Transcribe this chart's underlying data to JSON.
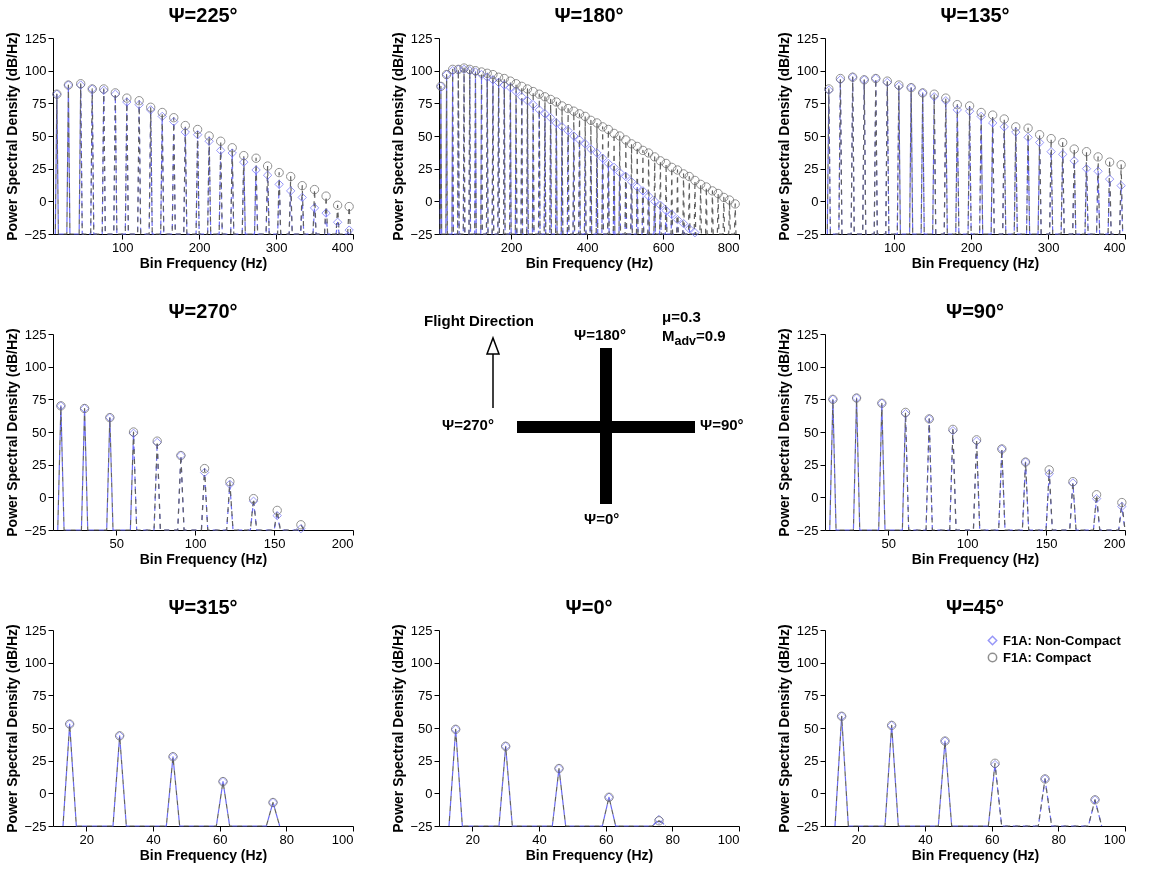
{
  "chart_data": [
    {
      "type": "line",
      "title": "Ψ=225°",
      "xlabel": "Bin Frequency (Hz)",
      "ylabel": "Power Spectral Density (dB/Hz)",
      "xlim": [
        10,
        400
      ],
      "xticks": [
        100,
        200,
        300,
        400
      ],
      "ylim": [
        -25,
        125
      ],
      "yticks": [
        -25,
        0,
        25,
        50,
        75,
        100,
        125
      ],
      "x": [
        13,
        15,
        17,
        28,
        30,
        32,
        44,
        46,
        48,
        59,
        61,
        63,
        74,
        76,
        78,
        89,
        91,
        93,
        104,
        106,
        108,
        120,
        122,
        124,
        135,
        137,
        139,
        150,
        152,
        154,
        165,
        167,
        169,
        180,
        182,
        184,
        196,
        198,
        200,
        211,
        213,
        215,
        226,
        228,
        230,
        241,
        243,
        245,
        256,
        258,
        260,
        272,
        274,
        276,
        287,
        289,
        291,
        302,
        304,
        306,
        317,
        319,
        321,
        332,
        334,
        336,
        348,
        350,
        352,
        363,
        365,
        367,
        378,
        380,
        382,
        393,
        395,
        397
      ],
      "series": [
        {
          "color": "#6b6bf5",
          "line_style": "dashed",
          "marker": "none",
          "values": [
            -25,
            82,
            -25,
            -25,
            89,
            -25,
            -25,
            89,
            -25,
            -25,
            86,
            -25,
            -25,
            85,
            -25,
            -25,
            82,
            -25,
            -25,
            76,
            -25,
            -25,
            74,
            -25,
            -25,
            70,
            -25,
            -25,
            65,
            -25,
            -25,
            61,
            -25,
            -25,
            53,
            -25,
            -25,
            51,
            -25,
            -25,
            46,
            -25,
            -25,
            39,
            -25,
            -25,
            37,
            -25,
            -25,
            30,
            -25,
            -25,
            24,
            -25,
            -25,
            20,
            -25,
            -25,
            13,
            -25,
            -25,
            8,
            -25,
            -25,
            3,
            -25,
            -25,
            -5,
            -25,
            -25,
            -9,
            -25,
            -25,
            -16,
            -25,
            -25,
            -22,
            -25
          ]
        },
        {
          "color": "#606060",
          "line_style": "dashed",
          "marker": "none",
          "values": [
            -25,
            82,
            -25,
            -25,
            89,
            -25,
            -25,
            90,
            -25,
            -25,
            86,
            -25,
            -25,
            86,
            -25,
            -25,
            83,
            -25,
            -25,
            79,
            -25,
            -25,
            77,
            -25,
            -25,
            72,
            -25,
            -25,
            68,
            -25,
            -25,
            64,
            -25,
            -25,
            58,
            -25,
            -25,
            55,
            -25,
            -25,
            50,
            -25,
            -25,
            46,
            -25,
            -25,
            41,
            -25,
            -25,
            35,
            -25,
            -25,
            33,
            -25,
            -25,
            27,
            -25,
            -25,
            22,
            -25,
            -25,
            19,
            -25,
            -25,
            12,
            -25,
            -25,
            9,
            -25,
            -25,
            4,
            -25,
            -25,
            -3,
            -25,
            -25,
            -4,
            -25
          ]
        },
        {
          "type": "scatter",
          "color": "#6b6bf5",
          "marker": "diamond",
          "x": [
            15,
            30,
            46,
            61,
            76,
            91,
            106,
            122,
            137,
            152,
            167,
            182,
            198,
            213,
            228,
            243,
            258,
            274,
            289,
            304,
            319,
            334,
            350,
            365,
            380,
            395
          ],
          "values": [
            82,
            89,
            89,
            86,
            85,
            82,
            76,
            74,
            70,
            65,
            61,
            53,
            51,
            46,
            39,
            37,
            30,
            24,
            20,
            13,
            8,
            3,
            -5,
            -9,
            -16,
            -22
          ]
        },
        {
          "type": "scatter",
          "color": "#606060",
          "marker": "circle",
          "x": [
            15,
            30,
            46,
            61,
            76,
            91,
            106,
            122,
            137,
            152,
            167,
            182,
            198,
            213,
            228,
            243,
            258,
            274,
            289,
            304,
            319,
            334,
            350,
            365,
            380,
            395
          ],
          "values": [
            82,
            89,
            90,
            86,
            86,
            83,
            79,
            77,
            72,
            68,
            64,
            58,
            55,
            50,
            46,
            41,
            35,
            33,
            27,
            22,
            19,
            12,
            9,
            4,
            -3,
            -4
          ]
        }
      ]
    },
    {
      "type": "line",
      "title": "Ψ=180°",
      "xlabel": "Bin Frequency (Hz)",
      "ylabel": "Power Spectral Density (dB/Hz)",
      "xlim": [
        10,
        800
      ],
      "xticks": [
        200,
        400,
        600,
        800
      ],
      "ylim": [
        -25,
        125
      ],
      "yticks": [
        -25,
        0,
        25,
        50,
        75,
        100,
        125
      ],
      "x": [
        13,
        15,
        17,
        28,
        30,
        32,
        44,
        46,
        48,
        59,
        61,
        63,
        74,
        76,
        78,
        89,
        91,
        93,
        104,
        106,
        108,
        120,
        122,
        124,
        135,
        137,
        139,
        150,
        152,
        154,
        165,
        167,
        169,
        180,
        182,
        184,
        196,
        198,
        200,
        211,
        213,
        215,
        226,
        228,
        230,
        241,
        243,
        245,
        256,
        258,
        260,
        272,
        274,
        276,
        287,
        289,
        291,
        302,
        304,
        306,
        317,
        319,
        321,
        332,
        334,
        336,
        348,
        350,
        352,
        363,
        365,
        367,
        378,
        380,
        382,
        393,
        395,
        397,
        408,
        410,
        412,
        424,
        426,
        428,
        439,
        441,
        443,
        454,
        456,
        458,
        469,
        471,
        473,
        484,
        486,
        488,
        500,
        502,
        504,
        515,
        517,
        519,
        530,
        532,
        534,
        545,
        547,
        549,
        560,
        562,
        564,
        576,
        578,
        580,
        591,
        593,
        595,
        606,
        608,
        610,
        621,
        623,
        625,
        636,
        638,
        640,
        652,
        654,
        656,
        667,
        669,
        671,
        682,
        684,
        686,
        697,
        699,
        701,
        712,
        714,
        716,
        728,
        730,
        732,
        743,
        745,
        747,
        758,
        760,
        762,
        773,
        775,
        777,
        788,
        790,
        792
      ],
      "series": [
        {
          "color": "#6b6bf5",
          "line_style": "dashed",
          "marker": "none",
          "values": [
            -25,
            88,
            -25,
            -25,
            97,
            -25,
            -25,
            100,
            -25,
            -25,
            101,
            -25,
            -25,
            101,
            -25,
            -25,
            100,
            -25,
            -25,
            99,
            -25,
            -25,
            97,
            -25,
            -25,
            95,
            -25,
            -25,
            93,
            -25,
            -25,
            91,
            -25,
            -25,
            89,
            -25,
            -25,
            87,
            -25,
            -25,
            84,
            -25,
            -25,
            80,
            -25,
            -25,
            77,
            -25,
            -25,
            74,
            -25,
            -25,
            70,
            -25,
            -25,
            67,
            -25,
            -25,
            64,
            -25,
            -25,
            60,
            -25,
            -25,
            57,
            -25,
            -25,
            54,
            -25,
            -25,
            50,
            -25,
            -25,
            47,
            -25,
            -25,
            44,
            -25,
            -25,
            40,
            -25,
            -25,
            37,
            -25,
            -25,
            33,
            -25,
            -25,
            29,
            -25,
            -25,
            26,
            -25,
            -25,
            22,
            -25,
            -25,
            19,
            -25,
            -25,
            15,
            -25,
            -25,
            11,
            -25,
            -25,
            8,
            -25,
            -25,
            4,
            -25,
            -25,
            0,
            -25,
            -25,
            -3,
            -25,
            -25,
            -7,
            -25,
            -25,
            -10,
            -25,
            -25,
            -14,
            -25,
            -25,
            -17,
            -25,
            -25,
            -21,
            -25,
            -25,
            -24,
            -25,
            null,
            null,
            null,
            null,
            null,
            null,
            null,
            null,
            null,
            null,
            null,
            null,
            null,
            null,
            null,
            null,
            null,
            null,
            null,
            null,
            null
          ]
        },
        {
          "color": "#606060",
          "line_style": "dashed",
          "marker": "none",
          "values": [
            -25,
            88,
            -25,
            -25,
            97,
            -25,
            -25,
            101,
            -25,
            -25,
            101,
            -25,
            -25,
            102,
            -25,
            -25,
            101,
            -25,
            -25,
            100,
            -25,
            -25,
            99,
            -25,
            -25,
            98,
            -25,
            -25,
            97,
            -25,
            -25,
            95,
            -25,
            -25,
            94,
            -25,
            -25,
            92,
            -25,
            -25,
            90,
            -25,
            -25,
            88,
            -25,
            -25,
            86,
            -25,
            -25,
            84,
            -25,
            -25,
            82,
            -25,
            -25,
            80,
            -25,
            -25,
            78,
            -25,
            -25,
            76,
            -25,
            -25,
            73,
            -25,
            -25,
            71,
            -25,
            -25,
            69,
            -25,
            -25,
            67,
            -25,
            -25,
            65,
            -25,
            -25,
            62,
            -25,
            -25,
            60,
            -25,
            -25,
            57,
            -25,
            -25,
            55,
            -25,
            -25,
            52,
            -25,
            -25,
            50,
            -25,
            -25,
            47,
            -25,
            -25,
            44,
            -25,
            -25,
            42,
            -25,
            -25,
            39,
            -25,
            -25,
            37,
            -25,
            -25,
            34,
            -25,
            -25,
            31,
            -25,
            -25,
            29,
            -25,
            -25,
            26,
            -25,
            -25,
            24,
            -25,
            -25,
            21,
            -25,
            -25,
            19,
            -25,
            -25,
            16,
            -25,
            -25,
            13,
            -25,
            -25,
            11,
            -25,
            -25,
            8,
            -25,
            -25,
            6,
            -25,
            -25,
            3,
            -25,
            -25,
            1,
            -25,
            -25,
            -2,
            -25
          ]
        },
        {
          "type": "scatter",
          "color": "#6b6bf5",
          "marker": "diamond",
          "x": [
            15,
            30,
            46,
            61,
            76,
            91,
            106,
            122,
            137,
            152,
            167,
            182,
            198,
            213,
            228,
            243,
            258,
            274,
            289,
            304,
            319,
            334,
            350,
            365,
            380,
            395,
            410,
            426,
            441,
            456,
            471,
            486,
            502,
            517,
            532,
            547,
            562,
            578,
            593,
            608,
            623,
            638,
            654,
            669,
            684
          ],
          "values": [
            88,
            97,
            100,
            101,
            101,
            100,
            99,
            97,
            95,
            93,
            91,
            89,
            87,
            84,
            80,
            77,
            74,
            70,
            67,
            64,
            60,
            57,
            54,
            50,
            47,
            44,
            40,
            37,
            33,
            29,
            26,
            22,
            19,
            15,
            11,
            8,
            4,
            0,
            -3,
            -7,
            -10,
            -14,
            -17,
            -21,
            -24
          ]
        },
        {
          "type": "scatter",
          "color": "#606060",
          "marker": "circle",
          "x": [
            15,
            30,
            46,
            61,
            76,
            91,
            106,
            122,
            137,
            152,
            167,
            182,
            198,
            213,
            228,
            243,
            258,
            274,
            289,
            304,
            319,
            334,
            350,
            365,
            380,
            395,
            410,
            426,
            441,
            456,
            471,
            486,
            502,
            517,
            532,
            547,
            562,
            578,
            593,
            608,
            623,
            638,
            654,
            669,
            684,
            699,
            714,
            730,
            745,
            760,
            775,
            790
          ],
          "values": [
            88,
            97,
            101,
            101,
            102,
            101,
            100,
            99,
            98,
            97,
            95,
            94,
            92,
            90,
            88,
            86,
            84,
            82,
            80,
            78,
            76,
            73,
            71,
            69,
            67,
            65,
            62,
            60,
            57,
            55,
            52,
            50,
            47,
            44,
            42,
            39,
            37,
            34,
            31,
            29,
            26,
            24,
            21,
            19,
            16,
            13,
            11,
            8,
            6,
            3,
            1,
            -2
          ]
        }
      ]
    },
    {
      "type": "line",
      "title": "Ψ=135°",
      "xlabel": "Bin Frequency (Hz)",
      "ylabel": "Power Spectral Density (dB/Hz)",
      "xlim": [
        10,
        400
      ],
      "xticks": [
        100,
        200,
        300,
        400
      ],
      "ylim": [
        -25,
        125
      ],
      "yticks": [
        -25,
        0,
        25,
        50,
        75,
        100,
        125
      ],
      "x": [
        13,
        15,
        17,
        28,
        30,
        32,
        44,
        46,
        48,
        59,
        61,
        63,
        74,
        76,
        78,
        89,
        91,
        93,
        104,
        106,
        108,
        120,
        122,
        124,
        135,
        137,
        139,
        150,
        152,
        154,
        165,
        167,
        169,
        180,
        182,
        184,
        196,
        198,
        200,
        211,
        213,
        215,
        226,
        228,
        230,
        241,
        243,
        245,
        256,
        258,
        260,
        272,
        274,
        276,
        287,
        289,
        291,
        302,
        304,
        306,
        317,
        319,
        321,
        332,
        334,
        336,
        348,
        350,
        352,
        363,
        365,
        367,
        378,
        380,
        382,
        393,
        395,
        397
      ],
      "series": [
        {
          "color": "#6b6bf5",
          "line_style": "dashed",
          "marker": "none",
          "values": [
            -25,
            85,
            -25,
            -25,
            93,
            -25,
            -25,
            95,
            -25,
            -25,
            93,
            -25,
            -25,
            94,
            -25,
            -25,
            91,
            -25,
            -25,
            88,
            -25,
            -25,
            87,
            -25,
            -25,
            83,
            -25,
            -25,
            80,
            -25,
            -25,
            77,
            -25,
            -25,
            70,
            -25,
            -25,
            69,
            -25,
            -25,
            65,
            -25,
            -25,
            60,
            -25,
            -25,
            57,
            -25,
            -25,
            53,
            -25,
            -25,
            49,
            -25,
            -25,
            45,
            -25,
            -25,
            38,
            -25,
            -25,
            36,
            -25,
            -25,
            31,
            -25,
            -25,
            25,
            -25,
            -25,
            23,
            -25,
            -25,
            17,
            -25,
            -25,
            12,
            -25
          ]
        },
        {
          "color": "#606060",
          "line_style": "dashed",
          "marker": "none",
          "values": [
            -25,
            86,
            -25,
            -25,
            94,
            -25,
            -25,
            95,
            -25,
            -25,
            93,
            -25,
            -25,
            94,
            -25,
            -25,
            92,
            -25,
            -25,
            89,
            -25,
            -25,
            87,
            -25,
            -25,
            83,
            -25,
            -25,
            82,
            -25,
            -25,
            79,
            -25,
            -25,
            74,
            -25,
            -25,
            73,
            -25,
            -25,
            68,
            -25,
            -25,
            66,
            -25,
            -25,
            63,
            -25,
            -25,
            57,
            -25,
            -25,
            56,
            -25,
            -25,
            51,
            -25,
            -25,
            48,
            -25,
            -25,
            45,
            -25,
            -25,
            40,
            -25,
            -25,
            38,
            -25,
            -25,
            34,
            -25,
            -25,
            30,
            -25,
            -25,
            28,
            -25
          ]
        },
        {
          "type": "scatter",
          "color": "#6b6bf5",
          "marker": "diamond",
          "x": [
            15,
            30,
            46,
            61,
            76,
            91,
            106,
            122,
            137,
            152,
            167,
            182,
            198,
            213,
            228,
            243,
            258,
            274,
            289,
            304,
            319,
            334,
            350,
            365,
            380,
            395
          ],
          "values": [
            85,
            93,
            95,
            93,
            94,
            91,
            88,
            87,
            83,
            80,
            77,
            70,
            69,
            65,
            60,
            57,
            53,
            49,
            45,
            38,
            36,
            31,
            25,
            23,
            17,
            12
          ]
        },
        {
          "type": "scatter",
          "color": "#606060",
          "marker": "circle",
          "x": [
            15,
            30,
            46,
            61,
            76,
            91,
            106,
            122,
            137,
            152,
            167,
            182,
            198,
            213,
            228,
            243,
            258,
            274,
            289,
            304,
            319,
            334,
            350,
            365,
            380,
            395
          ],
          "values": [
            86,
            94,
            95,
            93,
            94,
            92,
            89,
            87,
            83,
            82,
            79,
            74,
            73,
            68,
            66,
            63,
            57,
            56,
            51,
            48,
            45,
            40,
            38,
            34,
            30,
            28
          ]
        }
      ]
    },
    {
      "type": "line",
      "title": "Ψ=270°",
      "xlabel": "Bin Frequency (Hz)",
      "ylabel": "Power Spectral Density (dB/Hz)",
      "xlim": [
        10,
        200
      ],
      "xticks": [
        50,
        100,
        150,
        200
      ],
      "ylim": [
        -25,
        125
      ],
      "yticks": [
        -25,
        0,
        25,
        50,
        75,
        100,
        125
      ],
      "x": [
        13,
        15,
        17,
        28,
        30,
        32,
        44,
        46,
        48,
        59,
        61,
        63,
        74,
        76,
        78,
        89,
        91,
        93,
        104,
        106,
        108,
        120,
        122,
        124,
        135,
        137,
        139,
        150,
        152,
        154,
        165,
        167,
        169
      ],
      "series": [
        {
          "color": "#6b6bf5",
          "line_style": "dashed",
          "marker": "none",
          "values": [
            -25,
            70,
            -25,
            -25,
            68,
            -25,
            -25,
            61,
            -25,
            -25,
            49,
            -25,
            -25,
            42,
            -25,
            -25,
            32,
            -25,
            -25,
            19,
            -25,
            -25,
            10,
            -25,
            -25,
            -3,
            -25,
            -25,
            -14,
            -25,
            -25,
            -24,
            -25
          ]
        },
        {
          "color": "#606060",
          "line_style": "dashed",
          "marker": "none",
          "values": [
            -25,
            70,
            -25,
            -25,
            68,
            -25,
            -25,
            61,
            -25,
            -25,
            50,
            -25,
            -25,
            43,
            -25,
            -25,
            32,
            -25,
            -25,
            22,
            -25,
            -25,
            12,
            -25,
            -25,
            -1,
            -25,
            -25,
            -10,
            -25,
            -25,
            -21,
            -25
          ]
        },
        {
          "type": "scatter",
          "color": "#6b6bf5",
          "marker": "diamond",
          "x": [
            15,
            30,
            46,
            61,
            76,
            91,
            106,
            122,
            137,
            152,
            167
          ],
          "values": [
            70,
            68,
            61,
            49,
            42,
            32,
            19,
            10,
            -3,
            -14,
            -24
          ]
        },
        {
          "type": "scatter",
          "color": "#606060",
          "marker": "circle",
          "x": [
            15,
            30,
            46,
            61,
            76,
            91,
            106,
            122,
            137,
            152,
            167
          ],
          "values": [
            70,
            68,
            61,
            50,
            43,
            32,
            22,
            12,
            -1,
            -10,
            -21
          ]
        }
      ]
    },
    {
      "type": "other",
      "annotations": [
        "Flight Direction",
        "Ψ=180°",
        "Ψ=90°",
        "Ψ=0°",
        "Ψ=270°",
        "μ=0.3",
        "M$_{adv}$=0.9"
      ]
    },
    {
      "type": "line",
      "title": "Ψ=90°",
      "xlabel": "Bin Frequency (Hz)",
      "ylabel": "Power Spectral Density (dB/Hz)",
      "xlim": [
        10,
        200
      ],
      "xticks": [
        50,
        100,
        150,
        200
      ],
      "ylim": [
        -25,
        125
      ],
      "yticks": [
        -25,
        0,
        25,
        50,
        75,
        100,
        125
      ],
      "x": [
        13,
        15,
        17,
        28,
        30,
        32,
        44,
        46,
        48,
        59,
        61,
        63,
        74,
        76,
        78,
        89,
        91,
        93,
        104,
        106,
        108,
        120,
        122,
        124,
        135,
        137,
        139,
        150,
        152,
        154,
        165,
        167,
        169,
        180,
        182,
        184,
        196,
        198,
        200
      ],
      "series": [
        {
          "color": "#6b6bf5",
          "line_style": "dashed",
          "marker": "none",
          "values": [
            -25,
            75,
            -25,
            -25,
            76,
            -25,
            -25,
            72,
            -25,
            -25,
            64,
            -25,
            -25,
            60,
            -25,
            -25,
            51,
            -25,
            -25,
            43,
            -25,
            -25,
            37,
            -25,
            -25,
            27,
            -25,
            -25,
            18,
            -25,
            -25,
            11,
            -25,
            -25,
            -1,
            -25,
            -25,
            -7,
            -25
          ]
        },
        {
          "color": "#606060",
          "line_style": "dashed",
          "marker": "none",
          "values": [
            -25,
            75,
            -25,
            -25,
            76,
            -25,
            -25,
            72,
            -25,
            -25,
            65,
            -25,
            -25,
            60,
            -25,
            -25,
            52,
            -25,
            -25,
            44,
            -25,
            -25,
            37,
            -25,
            -25,
            27,
            -25,
            -25,
            21,
            -25,
            -25,
            12,
            -25,
            -25,
            2,
            -25,
            -25,
            -4,
            -25
          ]
        },
        {
          "type": "scatter",
          "color": "#6b6bf5",
          "marker": "diamond",
          "x": [
            15,
            30,
            46,
            61,
            76,
            91,
            106,
            122,
            137,
            152,
            167,
            182,
            198
          ],
          "values": [
            75,
            76,
            72,
            64,
            60,
            51,
            43,
            37,
            27,
            18,
            11,
            -1,
            -7
          ]
        },
        {
          "type": "scatter",
          "color": "#606060",
          "marker": "circle",
          "x": [
            15,
            30,
            46,
            61,
            76,
            91,
            106,
            122,
            137,
            152,
            167,
            182,
            198
          ],
          "values": [
            75,
            76,
            72,
            65,
            60,
            52,
            44,
            37,
            27,
            21,
            12,
            2,
            -4
          ]
        }
      ]
    },
    {
      "type": "line",
      "title": "Ψ=315°",
      "xlabel": "Bin Frequency (Hz)",
      "ylabel": "Power Spectral Density (dB/Hz)",
      "xlim": [
        10,
        100
      ],
      "xticks": [
        20,
        40,
        60,
        80,
        100
      ],
      "ylim": [
        -25,
        125
      ],
      "yticks": [
        -25,
        0,
        25,
        50,
        75,
        100,
        125
      ],
      "x": [
        13,
        15,
        17,
        28,
        30,
        32,
        44,
        46,
        48,
        59,
        61,
        63,
        74,
        76,
        78
      ],
      "series": [
        {
          "color": "#6b6bf5",
          "line_style": "dashed",
          "marker": "none",
          "values": [
            -25,
            53,
            -25,
            -25,
            44,
            -25,
            -25,
            28,
            -25,
            -25,
            9,
            -25,
            -25,
            -7,
            -25
          ]
        },
        {
          "color": "#606060",
          "line_style": "dashed",
          "marker": "none",
          "values": [
            -25,
            53,
            -25,
            -25,
            44,
            -25,
            -25,
            28,
            -25,
            -25,
            9,
            -25,
            -25,
            -7,
            -25
          ]
        },
        {
          "type": "scatter",
          "color": "#6b6bf5",
          "marker": "diamond",
          "x": [
            15,
            30,
            46,
            61,
            76
          ],
          "values": [
            53,
            44,
            28,
            9,
            -7
          ]
        },
        {
          "type": "scatter",
          "color": "#606060",
          "marker": "circle",
          "x": [
            15,
            30,
            46,
            61,
            76
          ],
          "values": [
            53,
            44,
            28,
            9,
            -7
          ]
        }
      ]
    },
    {
      "type": "line",
      "title": "Ψ=0°",
      "xlabel": "Bin Frequency (Hz)",
      "ylabel": "Power Spectral Density (dB/Hz)",
      "xlim": [
        10,
        100
      ],
      "xticks": [
        20,
        40,
        60,
        80,
        100
      ],
      "ylim": [
        -25,
        125
      ],
      "yticks": [
        -25,
        0,
        25,
        50,
        75,
        100,
        125
      ],
      "x": [
        13,
        15,
        17,
        28,
        30,
        32,
        44,
        46,
        48,
        59,
        61,
        63,
        74,
        76,
        78
      ],
      "series": [
        {
          "color": "#6b6bf5",
          "line_style": "dashed",
          "marker": "none",
          "values": [
            -25,
            49,
            -25,
            -25,
            36,
            -25,
            -25,
            19,
            -25,
            -25,
            -3,
            -25,
            -25,
            -20,
            -25
          ]
        },
        {
          "color": "#606060",
          "line_style": "dashed",
          "marker": "none",
          "values": [
            -25,
            49,
            -25,
            -25,
            36,
            -25,
            -25,
            19,
            -25,
            -25,
            -3,
            -25,
            -25,
            -21,
            -25
          ]
        },
        {
          "type": "scatter",
          "color": "#6b6bf5",
          "marker": "diamond",
          "x": [
            15,
            30,
            46,
            61,
            76
          ],
          "values": [
            49,
            36,
            19,
            -3,
            -20
          ]
        },
        {
          "type": "scatter",
          "color": "#606060",
          "marker": "circle",
          "x": [
            15,
            30,
            46,
            61,
            76
          ],
          "values": [
            49,
            36,
            19,
            -3,
            -21
          ]
        }
      ]
    },
    {
      "type": "line",
      "title": "Ψ=45°",
      "xlabel": "Bin Frequency (Hz)",
      "ylabel": "Power Spectral Density (dB/Hz)",
      "xlim": [
        10,
        100
      ],
      "xticks": [
        20,
        40,
        60,
        80,
        100
      ],
      "ylim": [
        -25,
        125
      ],
      "yticks": [
        -25,
        0,
        25,
        50,
        75,
        100,
        125
      ],
      "legend": "top right",
      "x": [
        13,
        15,
        17,
        28,
        30,
        32,
        44,
        46,
        48,
        59,
        61,
        63,
        74,
        76,
        78,
        89,
        91,
        93
      ],
      "series": [
        {
          "color": "#6b6bf5",
          "line_style": "dashed",
          "marker": "none",
          "values": [
            -25,
            59,
            -25,
            -25,
            52,
            -25,
            -25,
            40,
            -25,
            -25,
            22,
            -25,
            -25,
            11,
            -25,
            -25,
            -5,
            -25
          ]
        },
        {
          "color": "#606060",
          "line_style": "dashed",
          "marker": "none",
          "values": [
            -25,
            59,
            -25,
            -25,
            52,
            -25,
            -25,
            40,
            -25,
            -25,
            23,
            -25,
            -25,
            11,
            -25,
            -25,
            -5,
            -25
          ]
        },
        {
          "type": "scatter",
          "name": "F1A: Non-Compact",
          "color": "#6b6bf5",
          "marker": "diamond",
          "x": [
            15,
            30,
            46,
            61,
            76,
            91
          ],
          "values": [
            59,
            52,
            40,
            22,
            11,
            -5
          ]
        },
        {
          "type": "scatter",
          "name": "F1A: Compact",
          "color": "#606060",
          "marker": "circle",
          "x": [
            15,
            30,
            46,
            61,
            76,
            91
          ],
          "values": [
            59,
            52,
            40,
            23,
            11,
            -5
          ]
        }
      ]
    }
  ]
}
